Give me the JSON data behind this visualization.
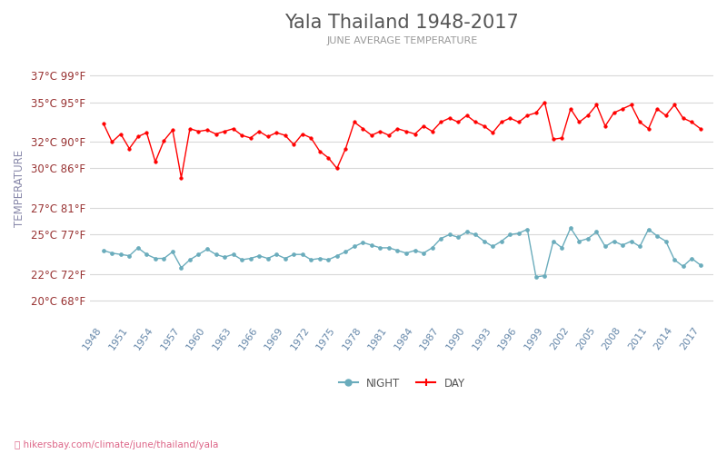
{
  "title": "Yala Thailand 1948-2017",
  "subtitle": "JUNE AVERAGE TEMPERATURE",
  "ylabel": "TEMPERATURE",
  "xlabel_url": "hikersbay.com/climate/june/thailand/yala",
  "years": [
    1948,
    1949,
    1950,
    1951,
    1952,
    1953,
    1954,
    1955,
    1956,
    1957,
    1958,
    1959,
    1960,
    1961,
    1962,
    1963,
    1964,
    1965,
    1966,
    1967,
    1968,
    1969,
    1970,
    1971,
    1972,
    1973,
    1974,
    1975,
    1976,
    1977,
    1978,
    1979,
    1980,
    1981,
    1982,
    1983,
    1984,
    1985,
    1986,
    1987,
    1988,
    1989,
    1990,
    1991,
    1992,
    1993,
    1994,
    1995,
    1996,
    1997,
    1998,
    1999,
    2000,
    2001,
    2002,
    2003,
    2004,
    2005,
    2006,
    2007,
    2008,
    2009,
    2010,
    2011,
    2012,
    2013,
    2014,
    2015,
    2016,
    2017
  ],
  "day_temps": [
    33.4,
    32.0,
    32.6,
    31.5,
    32.4,
    32.7,
    30.5,
    32.1,
    32.9,
    29.3,
    33.0,
    32.8,
    32.9,
    32.6,
    32.8,
    33.0,
    32.5,
    32.3,
    32.8,
    32.4,
    32.7,
    32.5,
    31.8,
    32.6,
    32.3,
    31.3,
    30.8,
    30.0,
    31.5,
    33.5,
    33.0,
    32.5,
    32.8,
    32.5,
    33.0,
    32.8,
    32.6,
    33.2,
    32.8,
    33.5,
    33.8,
    33.5,
    34.0,
    33.5,
    33.2,
    32.7,
    33.5,
    33.8,
    33.5,
    34.0,
    34.2,
    35.0,
    32.2,
    32.3,
    34.5,
    33.5,
    34.0,
    34.8,
    33.2,
    34.2,
    34.5,
    34.8,
    33.5,
    33.0,
    34.5,
    34.0,
    34.8,
    33.8,
    33.5,
    33.0
  ],
  "night_temps": [
    23.8,
    23.6,
    23.5,
    23.4,
    24.0,
    23.5,
    23.2,
    23.2,
    23.7,
    22.5,
    23.1,
    23.5,
    23.9,
    23.5,
    23.3,
    23.5,
    23.1,
    23.2,
    23.4,
    23.2,
    23.5,
    23.2,
    23.5,
    23.5,
    23.1,
    23.2,
    23.1,
    23.4,
    23.7,
    24.1,
    24.4,
    24.2,
    24.0,
    24.0,
    23.8,
    23.6,
    23.8,
    23.6,
    24.0,
    24.7,
    25.0,
    24.8,
    25.2,
    25.0,
    24.5,
    24.1,
    24.5,
    25.0,
    25.1,
    25.4,
    21.8,
    21.9,
    24.5,
    24.0,
    25.5,
    24.5,
    24.7,
    25.2,
    24.1,
    24.5,
    24.2,
    24.5,
    24.1,
    25.4,
    24.9,
    24.5,
    23.1,
    22.6,
    23.2,
    22.7
  ],
  "day_color": "#ff0000",
  "night_color": "#6aacbc",
  "background_color": "#ffffff",
  "grid_color": "#d8d8d8",
  "title_color": "#555555",
  "subtitle_color": "#999999",
  "ylabel_color": "#8888aa",
  "tick_label_color": "#993333",
  "xtick_label_color": "#6688aa",
  "yticks_c": [
    20,
    22,
    25,
    27,
    30,
    32,
    35,
    37
  ],
  "yticks_f": [
    68,
    72,
    77,
    81,
    86,
    90,
    95,
    99
  ],
  "ylim": [
    18.5,
    38.5
  ],
  "xlim": [
    1946.5,
    2018.5
  ],
  "legend_night": "NIGHT",
  "legend_day": "DAY",
  "figsize": [
    8.0,
    5.0
  ],
  "dpi": 100
}
